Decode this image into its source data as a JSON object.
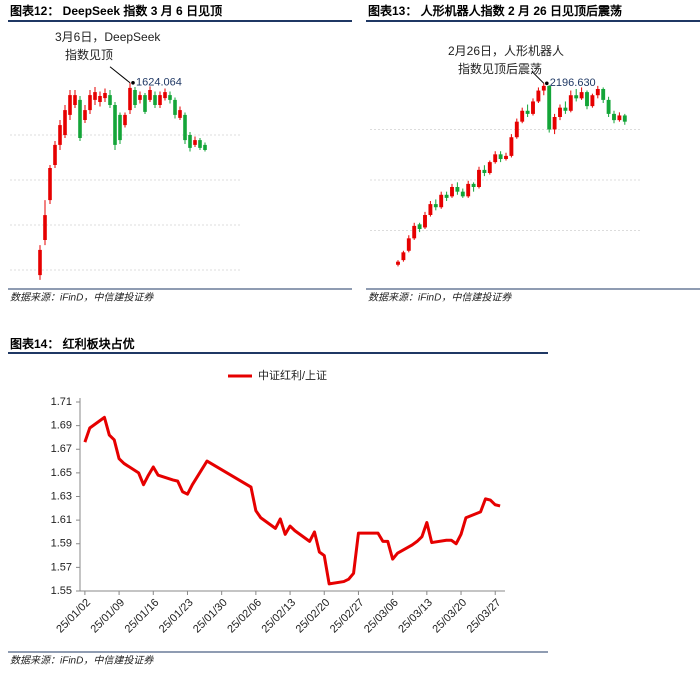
{
  "chart_data": [
    {
      "type": "candlestick",
      "title": "图表12：  DeepSeek 指数 3 月 6 日见顶",
      "source": "数据来源：iFinD，中信建投证券",
      "annotation": {
        "lines": [
          "3月6日，DeepSeek",
          "指数见顶"
        ],
        "value_label": "1624.064"
      },
      "up_color": "#e60000",
      "down_color": "#13a538",
      "grid": true,
      "show_ytick_labels": false,
      "ylim": [
        950,
        1700
      ],
      "yticks": [
        1000,
        1150,
        1300,
        1450
      ],
      "open": [
        983,
        1100,
        1233,
        1350,
        1417,
        1450,
        1517,
        1550,
        1567,
        1500,
        1533,
        1567,
        1560,
        1573,
        1583,
        1550,
        1517,
        1483,
        1533,
        1600,
        1567,
        1583,
        1567,
        1583,
        1550,
        1573,
        1583,
        1567,
        1507,
        1517,
        1450,
        1417,
        1433,
        1417
      ],
      "close": [
        1067,
        1183,
        1340,
        1417,
        1483,
        1533,
        1583,
        1583,
        1440,
        1533,
        1583,
        1593,
        1580,
        1590,
        1550,
        1417,
        1433,
        1517,
        1607,
        1550,
        1583,
        1527,
        1600,
        1550,
        1583,
        1593,
        1567,
        1517,
        1533,
        1433,
        1407,
        1433,
        1407,
        1400
      ],
      "high": [
        1083,
        1233,
        1350,
        1430,
        1500,
        1550,
        1600,
        1600,
        1580,
        1550,
        1600,
        1610,
        1595,
        1605,
        1600,
        1560,
        1525,
        1525,
        1624.064,
        1610,
        1595,
        1590,
        1612,
        1595,
        1595,
        1605,
        1595,
        1575,
        1545,
        1525,
        1460,
        1445,
        1440,
        1425
      ],
      "low": [
        967,
        1083,
        1220,
        1340,
        1400,
        1440,
        1500,
        1540,
        1430,
        1490,
        1520,
        1550,
        1545,
        1560,
        1540,
        1400,
        1420,
        1475,
        1520,
        1540,
        1555,
        1520,
        1560,
        1540,
        1540,
        1565,
        1555,
        1505,
        1500,
        1420,
        1395,
        1410,
        1400,
        1395
      ]
    },
    {
      "type": "candlestick",
      "title": "图表13：  人形机器人指数 2 月 26 日见顶后震荡",
      "source": "数据来源：iFinD，中信建投证券",
      "annotation": {
        "lines": [
          "2月26日，人形机器人",
          "指数见顶后震荡"
        ],
        "value_label": "2196.630"
      },
      "up_color": "#e60000",
      "down_color": "#13a538",
      "grid": true,
      "show_ytick_labels": false,
      "ylim": [
        900,
        2250
      ],
      "yticks": [
        1250,
        1575,
        1900
      ],
      "open": [
        1030,
        1060,
        1120,
        1200,
        1290,
        1270,
        1350,
        1420,
        1400,
        1480,
        1470,
        1530,
        1500,
        1470,
        1550,
        1530,
        1640,
        1620,
        1690,
        1740,
        1710,
        1730,
        1850,
        1950,
        2020,
        2000,
        2080,
        2150,
        2180,
        1900,
        1980,
        2040,
        2020,
        2120,
        2100,
        2140,
        2050,
        2120,
        2160,
        2090,
        2000,
        1960,
        1990
      ],
      "close": [
        1050,
        1110,
        1200,
        1280,
        1260,
        1350,
        1420,
        1400,
        1480,
        1460,
        1530,
        1500,
        1470,
        1550,
        1530,
        1640,
        1620,
        1690,
        1740,
        1710,
        1730,
        1850,
        1950,
        2020,
        2000,
        2080,
        2150,
        2180,
        1900,
        1980,
        2040,
        2020,
        2120,
        2100,
        2140,
        2050,
        2120,
        2160,
        2090,
        2000,
        1960,
        1990,
        1950
      ],
      "high": [
        1060,
        1120,
        1220,
        1300,
        1300,
        1370,
        1440,
        1450,
        1500,
        1500,
        1550,
        1560,
        1520,
        1570,
        1560,
        1660,
        1670,
        1700,
        1760,
        1760,
        1750,
        1870,
        1970,
        2040,
        2060,
        2100,
        2170,
        2196.63,
        2185,
        2000,
        2060,
        2080,
        2150,
        2160,
        2170,
        2150,
        2130,
        2180,
        2170,
        2110,
        2020,
        2010,
        2000
      ],
      "low": [
        1020,
        1050,
        1110,
        1190,
        1240,
        1260,
        1340,
        1380,
        1390,
        1440,
        1460,
        1480,
        1460,
        1460,
        1500,
        1520,
        1600,
        1610,
        1680,
        1690,
        1700,
        1720,
        1840,
        1940,
        1980,
        1990,
        2070,
        2120,
        1880,
        1870,
        1960,
        2000,
        2010,
        2080,
        2090,
        2030,
        2040,
        2100,
        2070,
        1980,
        1940,
        1950,
        1930
      ]
    },
    {
      "type": "line",
      "title": "图表14：  红利板块占优",
      "source": "数据来源：iFinD，中信建投证券",
      "grid": false,
      "legend": "top",
      "x": [
        "25/01/02",
        "25/01/03",
        "25/01/06",
        "25/01/07",
        "25/01/08",
        "25/01/09",
        "25/01/10",
        "25/01/13",
        "25/01/14",
        "25/01/15",
        "25/01/16",
        "25/01/17",
        "25/01/20",
        "25/01/21",
        "25/01/22",
        "25/01/23",
        "25/01/24",
        "25/01/27",
        "25/02/05",
        "25/02/06",
        "25/02/07",
        "25/02/10",
        "25/02/11",
        "25/02/12",
        "25/02/13",
        "25/02/14",
        "25/02/17",
        "25/02/18",
        "25/02/19",
        "25/02/20",
        "25/02/21",
        "25/02/24",
        "25/02/25",
        "25/02/26",
        "25/02/27",
        "25/02/28",
        "25/03/03",
        "25/03/04",
        "25/03/05",
        "25/03/06",
        "25/03/07",
        "25/03/10",
        "25/03/11",
        "25/03/12",
        "25/03/13",
        "25/03/14",
        "25/03/17",
        "25/03/18",
        "25/03/19",
        "25/03/20",
        "25/03/21",
        "25/03/24",
        "25/03/25",
        "25/03/26",
        "25/03/27",
        "25/03/28"
      ],
      "series": [
        {
          "name": "中证红利/上证",
          "color": "#e60000",
          "values": [
            1.676,
            1.688,
            1.697,
            1.682,
            1.678,
            1.662,
            1.658,
            1.65,
            1.64,
            1.648,
            1.655,
            1.648,
            1.644,
            1.643,
            1.634,
            1.632,
            1.64,
            1.66,
            1.638,
            1.618,
            1.612,
            1.603,
            1.611,
            1.598,
            1.605,
            1.601,
            1.592,
            1.6,
            1.583,
            1.58,
            1.556,
            1.558,
            1.56,
            1.565,
            1.599,
            1.599,
            1.599,
            1.592,
            1.592,
            1.577,
            1.582,
            1.589,
            1.592,
            1.596,
            1.608,
            1.591,
            1.593,
            1.593,
            1.59,
            1.598,
            1.612,
            1.617,
            1.628,
            1.627,
            1.623,
            1.622
          ]
        }
      ],
      "xlim": [
        "25/01/01",
        "25/03/29"
      ],
      "xticks": [
        "25/01/02",
        "25/01/09",
        "25/01/16",
        "25/01/23",
        "25/01/30",
        "25/02/06",
        "25/02/13",
        "25/02/20",
        "25/02/27",
        "25/03/06",
        "25/03/13",
        "25/03/20",
        "25/03/27"
      ],
      "ylim": [
        1.55,
        1.71
      ],
      "yticks": [
        1.55,
        1.57,
        1.59,
        1.61,
        1.63,
        1.65,
        1.67,
        1.69,
        1.71
      ]
    }
  ]
}
